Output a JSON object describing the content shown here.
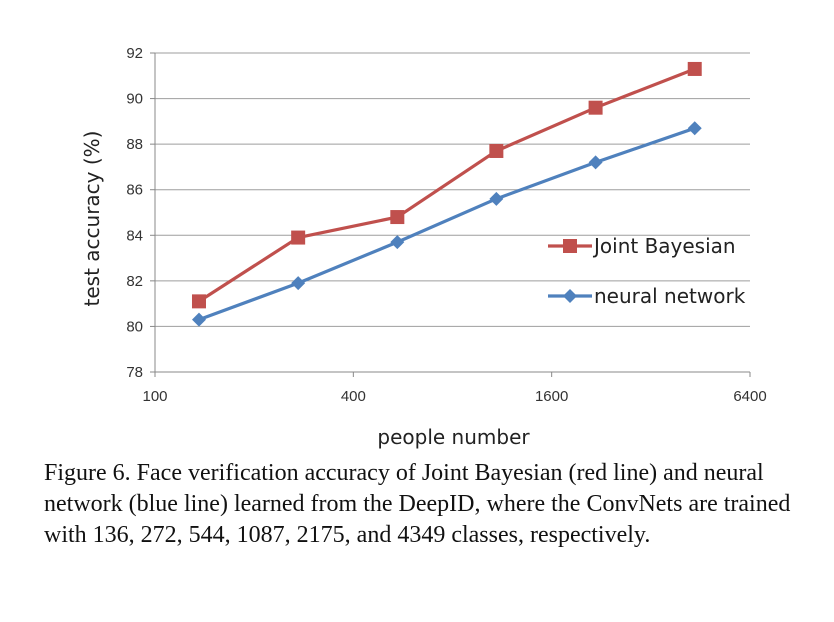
{
  "chart_data": {
    "type": "line",
    "xlabel": "people number",
    "ylabel": "test accuracy (%)",
    "x_scale": "log2",
    "xlim": [
      100,
      6400
    ],
    "ylim": [
      78,
      92
    ],
    "x_ticks": [
      100,
      400,
      1600,
      6400
    ],
    "y_ticks": [
      78,
      80,
      82,
      84,
      86,
      88,
      90,
      92
    ],
    "grid": true,
    "legend_position": "center-right",
    "x": [
      136,
      272,
      544,
      1087,
      2175,
      4349
    ],
    "series": [
      {
        "name": "Joint Bayesian",
        "color": "#c0504d",
        "marker": "square",
        "values": [
          81.1,
          83.9,
          84.8,
          87.7,
          89.6,
          91.3
        ]
      },
      {
        "name": "neural network",
        "color": "#4f81bd",
        "marker": "diamond",
        "values": [
          80.3,
          81.9,
          83.7,
          85.6,
          87.2,
          88.7
        ]
      }
    ]
  },
  "caption": "Figure 6. Face verification accuracy of Joint Bayesian (red line) and neural network (blue line) learned from the DeepID, where the ConvNets are trained with 136, 272, 544, 1087, 2175, and 4349 classes, respectively."
}
